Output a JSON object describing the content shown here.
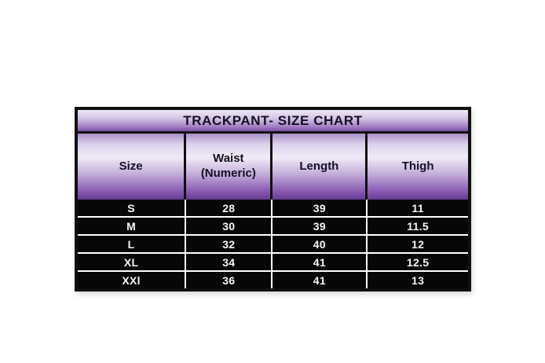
{
  "title": "TRACKPANT- SIZE CHART",
  "colors": {
    "background": "#ffffff",
    "table_border": "#101010",
    "header_gradient_light": "#f0ebf7",
    "header_gradient_dark": "#683c93",
    "title_gradient_top": "#ede7f6",
    "title_gradient_bottom": "#7b4fa6",
    "data_row_background": "#070707",
    "data_grid_lines": "#ffffff",
    "data_text": "#f6f6f6",
    "header_text": "#141021"
  },
  "chart_data": {
    "type": "table",
    "title": "TRACKPANT- SIZE CHART",
    "columns": [
      "Size",
      "Waist (Numeric)",
      "Length",
      "Thigh"
    ],
    "rows": [
      [
        "S",
        "28",
        "39",
        "11"
      ],
      [
        "M",
        "30",
        "39",
        "11.5"
      ],
      [
        "L",
        "32",
        "40",
        "12"
      ],
      [
        "XL",
        "34",
        "41",
        "12.5"
      ],
      [
        "XXl",
        "36",
        "41",
        "13"
      ]
    ]
  }
}
